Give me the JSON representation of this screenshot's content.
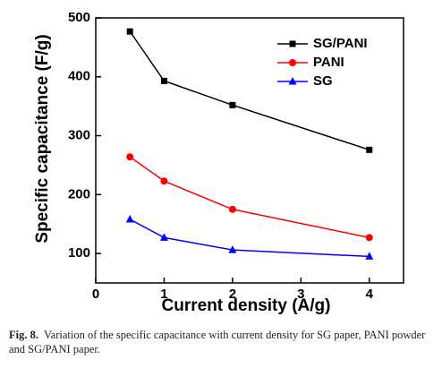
{
  "chart_data": {
    "type": "line",
    "x_label": "Current density (A/g)",
    "y_label": "Specific capacitance (F/g)",
    "x": [
      0.5,
      1,
      2,
      4
    ],
    "series": [
      {
        "name": "SG/PANI",
        "color": "#000000",
        "marker": "square",
        "values": [
          477,
          393,
          352,
          276
        ]
      },
      {
        "name": "PANI",
        "color": "#ff0000",
        "marker": "circle",
        "values": [
          264,
          223,
          175,
          127
        ]
      },
      {
        "name": "SG",
        "color": "#0000ff",
        "marker": "triangle",
        "values": [
          158,
          127,
          106,
          95
        ]
      }
    ],
    "xlim": [
      0,
      4.5
    ],
    "xticks": [
      0,
      1,
      2,
      3,
      4
    ],
    "ylim": [
      50,
      500
    ],
    "yticks": [
      100,
      200,
      300,
      400,
      500
    ],
    "legend": "upper right"
  },
  "caption": {
    "label": "Fig. 8.",
    "text": "Variation of the specific capacitance with current density for SG paper, PANI powder and SG/PANI paper."
  }
}
